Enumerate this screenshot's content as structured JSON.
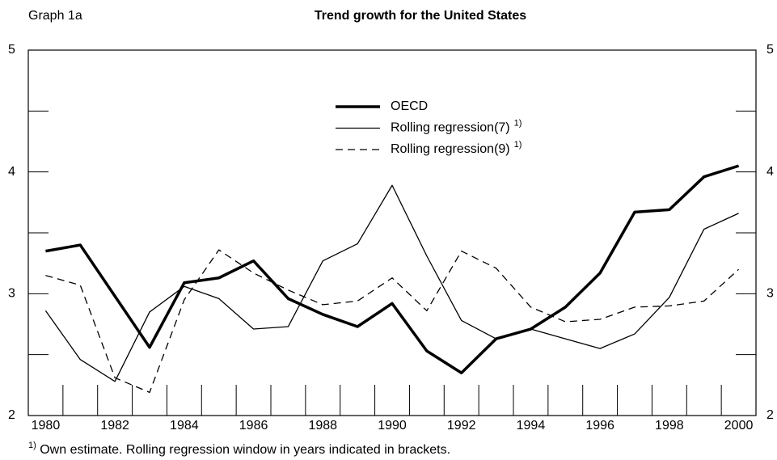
{
  "graph_label": "Graph 1a",
  "chart_data": {
    "type": "line",
    "title": "Trend growth for the United States",
    "categories": [
      "1980",
      null,
      "1982",
      null,
      "1984",
      null,
      "1986",
      null,
      "1988",
      null,
      "1990",
      null,
      "1992",
      null,
      "1994",
      null,
      "1996",
      null,
      "1998",
      null,
      "2000"
    ],
    "series": [
      {
        "name": "OECD",
        "color": "#000000",
        "width": 3.5,
        "dash": "none",
        "values": [
          3.35,
          3.4,
          2.98,
          2.56,
          3.09,
          3.13,
          3.27,
          2.96,
          2.83,
          2.73,
          2.92,
          2.53,
          2.35,
          2.63,
          2.71,
          2.89,
          3.17,
          3.67,
          3.69,
          3.96,
          4.05
        ]
      },
      {
        "name": "Rolling regression(7)",
        "note_marker": "1)",
        "color": "#000000",
        "width": 1.3,
        "dash": "none",
        "values": [
          2.86,
          2.46,
          2.28,
          2.85,
          3.06,
          2.96,
          2.71,
          2.73,
          3.27,
          3.41,
          3.89,
          3.31,
          2.78,
          2.63,
          2.71,
          2.63,
          2.55,
          2.67,
          2.97,
          3.53,
          3.66
        ]
      },
      {
        "name": "Rolling regression(9)",
        "note_marker": "1)",
        "color": "#000000",
        "width": 1.3,
        "dash": "9 6",
        "values": [
          3.15,
          3.07,
          2.31,
          2.19,
          2.95,
          3.36,
          3.17,
          3.03,
          2.91,
          2.94,
          3.13,
          2.86,
          3.35,
          3.21,
          2.89,
          2.77,
          2.79,
          2.89,
          2.9,
          2.94,
          3.2
        ]
      }
    ],
    "ylim": [
      2,
      5
    ],
    "yticks": [
      2,
      3,
      4,
      5
    ],
    "minor_yticks": [
      2.5,
      3.5,
      4.5
    ],
    "grid": false,
    "footnote": {
      "marker": "1)",
      "text": " Own estimate. Rolling regression window in years indicated in brackets."
    }
  }
}
